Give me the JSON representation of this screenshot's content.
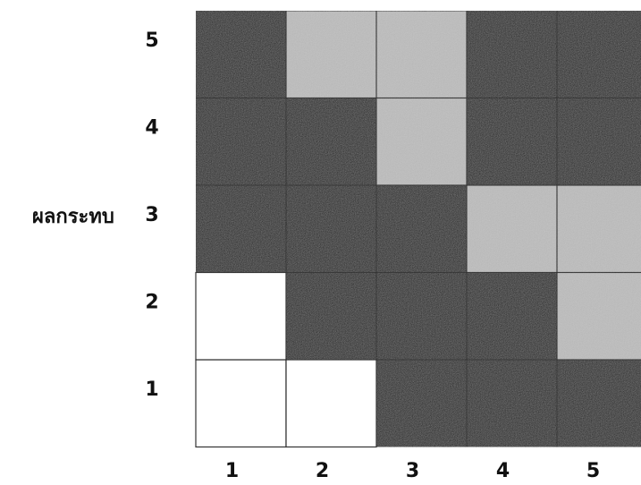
{
  "chart_data": {
    "type": "heatmap",
    "title": "",
    "xlabel": "",
    "ylabel": "ผลกระทบ",
    "x_categories": [
      "1",
      "2",
      "3",
      "4",
      "5"
    ],
    "y_categories": [
      "1",
      "2",
      "3",
      "4",
      "5"
    ],
    "grid": true,
    "legend": "none",
    "colors": {
      "high": "#000000",
      "medium": "#bdbdbd",
      "medium_dark": "#a8a8a8",
      "low": "#ffffff",
      "cell_border": "#333333"
    },
    "cells": [
      {
        "x": "1",
        "y": "1",
        "level": "low"
      },
      {
        "x": "2",
        "y": "1",
        "level": "low"
      },
      {
        "x": "3",
        "y": "1",
        "level": "high"
      },
      {
        "x": "4",
        "y": "1",
        "level": "high"
      },
      {
        "x": "5",
        "y": "1",
        "level": "high"
      },
      {
        "x": "1",
        "y": "2",
        "level": "low"
      },
      {
        "x": "2",
        "y": "2",
        "level": "high"
      },
      {
        "x": "3",
        "y": "2",
        "level": "high"
      },
      {
        "x": "4",
        "y": "2",
        "level": "high"
      },
      {
        "x": "5",
        "y": "2",
        "level": "medium"
      },
      {
        "x": "1",
        "y": "3",
        "level": "high"
      },
      {
        "x": "2",
        "y": "3",
        "level": "high"
      },
      {
        "x": "3",
        "y": "3",
        "level": "high"
      },
      {
        "x": "4",
        "y": "3",
        "level": "medium"
      },
      {
        "x": "5",
        "y": "3",
        "level": "medium"
      },
      {
        "x": "1",
        "y": "4",
        "level": "high"
      },
      {
        "x": "2",
        "y": "4",
        "level": "high"
      },
      {
        "x": "3",
        "y": "4",
        "level": "medium"
      },
      {
        "x": "4",
        "y": "4",
        "level": "high"
      },
      {
        "x": "5",
        "y": "4",
        "level": "high"
      },
      {
        "x": "1",
        "y": "5",
        "level": "high"
      },
      {
        "x": "2",
        "y": "5",
        "level": "medium"
      },
      {
        "x": "3",
        "y": "5",
        "level": "medium"
      },
      {
        "x": "4",
        "y": "5",
        "level": "high"
      },
      {
        "x": "5",
        "y": "5",
        "level": "high"
      }
    ]
  }
}
